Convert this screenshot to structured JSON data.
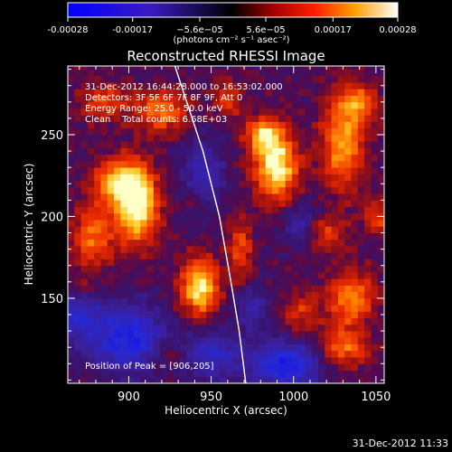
{
  "chart_data": {
    "type": "heatmap",
    "title": "Reconstructed RHESSI Image",
    "xlabel": "Heliocentric X (arcsec)",
    "ylabel": "Heliocentric Y (arcsec)",
    "xlim": [
      863,
      1055
    ],
    "ylim": [
      98,
      292
    ],
    "x_ticks": [
      900,
      950,
      1000,
      1050
    ],
    "y_ticks": [
      150,
      200,
      250
    ],
    "colorbar": {
      "range": [
        -0.00028,
        0.00028
      ],
      "ticks": [
        {
          "value": -0.00028,
          "label": "-0.00028"
        },
        {
          "value": -0.00017,
          "label": "-0.00017"
        },
        {
          "value": -5.6e-05,
          "label": "−5.6e−05"
        },
        {
          "value": 5.6e-05,
          "label": "5.6e−05"
        },
        {
          "value": 0.00017,
          "label": "0.00017"
        },
        {
          "value": 0.00028,
          "label": "0.00028"
        }
      ],
      "units": "(photons cm⁻² s⁻¹ asec⁻²)"
    },
    "info_lines": [
      "31-Dec-2012 16:44:28.000 to 16:53:02.000",
      "Detectors: 3F 5F 6F 7F 8F 9F, Att 0",
      "Energy Range: 25.0 - 50.0 keV",
      "Clean    Total counts: 6.68E+03"
    ],
    "peak_label": "Position of Peak = [906,205]",
    "limb": [
      [
        928,
        292
      ],
      [
        945,
        240
      ],
      [
        955,
        200
      ],
      [
        962,
        160
      ],
      [
        967,
        130
      ],
      [
        971,
        98
      ]
    ],
    "sources": [
      {
        "x": 905,
        "y": 207,
        "amp": 1.0,
        "sx": 9,
        "sy": 16
      },
      {
        "x": 893,
        "y": 222,
        "amp": 0.7,
        "sx": 10,
        "sy": 10
      },
      {
        "x": 878,
        "y": 188,
        "amp": 0.55,
        "sx": 9,
        "sy": 14
      },
      {
        "x": 920,
        "y": 265,
        "amp": 0.6,
        "sx": 11,
        "sy": 9
      },
      {
        "x": 885,
        "y": 270,
        "amp": 0.45,
        "sx": 10,
        "sy": 8
      },
      {
        "x": 943,
        "y": 157,
        "amp": 0.9,
        "sx": 8,
        "sy": 12
      },
      {
        "x": 990,
        "y": 230,
        "amp": 0.95,
        "sx": 9,
        "sy": 14
      },
      {
        "x": 982,
        "y": 250,
        "amp": 0.7,
        "sx": 8,
        "sy": 8
      },
      {
        "x": 1030,
        "y": 245,
        "amp": 0.7,
        "sx": 9,
        "sy": 20
      },
      {
        "x": 1040,
        "y": 270,
        "amp": 0.5,
        "sx": 8,
        "sy": 8
      },
      {
        "x": 1018,
        "y": 190,
        "amp": 0.45,
        "sx": 8,
        "sy": 8
      },
      {
        "x": 1035,
        "y": 150,
        "amp": 0.6,
        "sx": 10,
        "sy": 12
      },
      {
        "x": 1030,
        "y": 120,
        "amp": 0.55,
        "sx": 10,
        "sy": 8
      },
      {
        "x": 968,
        "y": 180,
        "amp": 0.45,
        "sx": 5,
        "sy": 14
      },
      {
        "x": 1005,
        "y": 140,
        "amp": 0.35,
        "sx": 8,
        "sy": 10
      },
      {
        "x": 925,
        "y": 115,
        "amp": 0.3,
        "sx": 9,
        "sy": 7
      },
      {
        "x": 960,
        "y": 272,
        "amp": 0.4,
        "sx": 6,
        "sy": 8
      },
      {
        "x": 1050,
        "y": 200,
        "amp": 0.4,
        "sx": 6,
        "sy": 8
      },
      {
        "x": 940,
        "y": 210,
        "amp": 0.25,
        "sx": 6,
        "sy": 6
      },
      {
        "x": 872,
        "y": 155,
        "amp": 0.25,
        "sx": 6,
        "sy": 6
      }
    ],
    "negatives": [
      {
        "x": 900,
        "y": 125,
        "amp": 0.8,
        "sx": 16,
        "sy": 14
      },
      {
        "x": 995,
        "y": 110,
        "amp": 0.85,
        "sx": 14,
        "sy": 10
      },
      {
        "x": 950,
        "y": 115,
        "amp": 0.55,
        "sx": 14,
        "sy": 10
      },
      {
        "x": 945,
        "y": 225,
        "amp": 0.45,
        "sx": 9,
        "sy": 16
      },
      {
        "x": 1005,
        "y": 195,
        "amp": 0.4,
        "sx": 8,
        "sy": 10
      },
      {
        "x": 870,
        "y": 140,
        "amp": 0.55,
        "sx": 10,
        "sy": 12
      },
      {
        "x": 975,
        "y": 145,
        "amp": 0.4,
        "sx": 8,
        "sy": 10
      }
    ],
    "grid": false
  },
  "timestamp": "31-Dec-2012 11:33"
}
